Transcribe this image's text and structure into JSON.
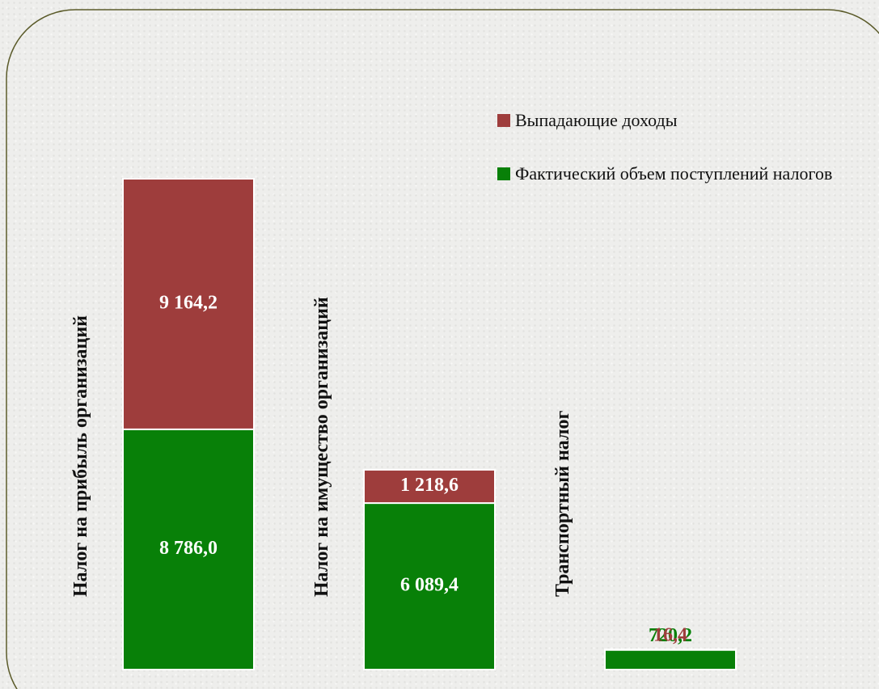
{
  "chart_data": {
    "type": "stacked_bar",
    "categories": [
      "Налог на прибыль организаций",
      "Налог на имущество организаций",
      "Транспортный налог"
    ],
    "series": [
      {
        "name": "Фактический объем поступлений налогов",
        "color": "#088008",
        "values": [
          8786.0,
          6089.4,
          720.2
        ],
        "value_labels": [
          "8 786,0",
          "6 089,4",
          "720,2"
        ]
      },
      {
        "name": "Выпадающие доходы",
        "color": "#9e3d3c",
        "values": [
          9164.2,
          1218.6,
          16.4
        ],
        "value_labels": [
          "9 164,2",
          "1 218,6",
          "16,4"
        ]
      }
    ],
    "legend": "top-right"
  }
}
